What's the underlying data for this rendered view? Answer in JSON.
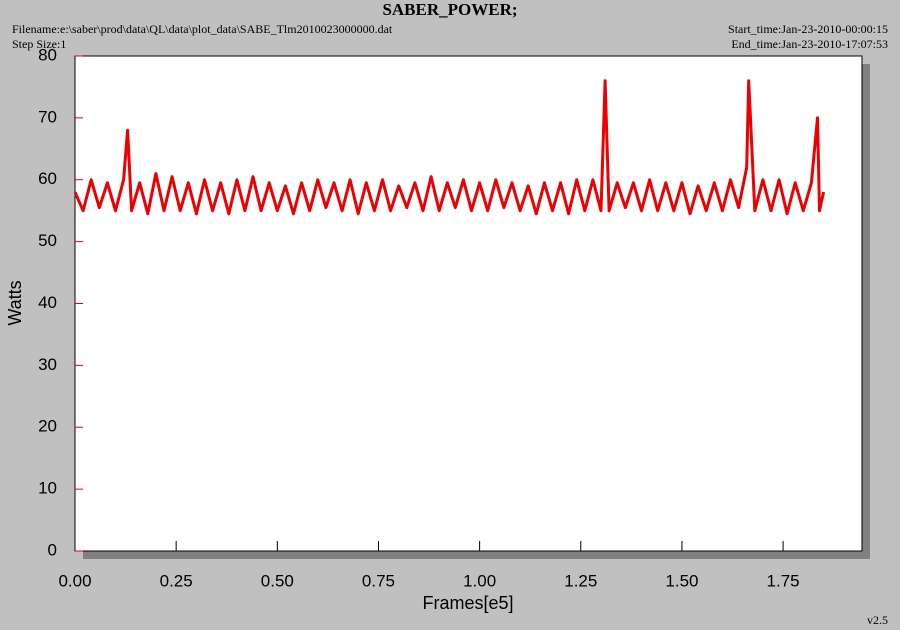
{
  "chart_data": {
    "type": "line",
    "title": "SABER_POWER;",
    "filename": "Filename:e:\\saber\\prod\\data\\QL\\data\\plot_data\\SABE_Tlm2010023000000.dat",
    "step_size": "Step Size:1",
    "start_time": "Start_time:Jan-23-2010-00:00:15",
    "end_time": "End_time:Jan-23-2010-17:07:53",
    "version": "v2.5",
    "x_label": "Frames[e5]",
    "y_label": "Watts",
    "xlim": [
      0,
      1.945
    ],
    "ylim": [
      0,
      80
    ],
    "xticks": [
      {
        "value": 0,
        "label": "0.00"
      },
      {
        "value": 0.25,
        "label": "0.25"
      },
      {
        "value": 0.5,
        "label": "0.50"
      },
      {
        "value": 0.75,
        "label": "0.75"
      },
      {
        "value": 1,
        "label": "1.00"
      },
      {
        "value": 1.25,
        "label": "1.25"
      },
      {
        "value": 1.5,
        "label": "1.50"
      },
      {
        "value": 1.75,
        "label": "1.75"
      }
    ],
    "yticks": [
      0,
      10,
      20,
      30,
      40,
      50,
      60,
      70,
      80
    ],
    "x": [
      0,
      0.02,
      0.04,
      0.06,
      0.08,
      0.1,
      0.12,
      0.13,
      0.14,
      0.16,
      0.18,
      0.2,
      0.22,
      0.24,
      0.26,
      0.28,
      0.3,
      0.32,
      0.34,
      0.36,
      0.38,
      0.4,
      0.42,
      0.44,
      0.46,
      0.48,
      0.5,
      0.52,
      0.54,
      0.56,
      0.58,
      0.6,
      0.62,
      0.64,
      0.66,
      0.68,
      0.7,
      0.72,
      0.74,
      0.76,
      0.78,
      0.8,
      0.82,
      0.84,
      0.86,
      0.88,
      0.9,
      0.92,
      0.94,
      0.96,
      0.98,
      1,
      1.02,
      1.04,
      1.06,
      1.08,
      1.1,
      1.12,
      1.14,
      1.16,
      1.18,
      1.2,
      1.22,
      1.24,
      1.26,
      1.28,
      1.3,
      1.31,
      1.32,
      1.34,
      1.36,
      1.38,
      1.4,
      1.42,
      1.44,
      1.46,
      1.48,
      1.5,
      1.52,
      1.54,
      1.56,
      1.58,
      1.6,
      1.62,
      1.64,
      1.66,
      1.665,
      1.68,
      1.7,
      1.72,
      1.74,
      1.76,
      1.78,
      1.8,
      1.82,
      1.835,
      1.84,
      1.85
    ],
    "series": [
      {
        "color": "#ee0000",
        "values": [
          58,
          55,
          60,
          55.5,
          59.5,
          55,
          60,
          68,
          55,
          59.5,
          54.5,
          61,
          55,
          60.5,
          55,
          59.5,
          54.5,
          60,
          55,
          59.5,
          54.5,
          60,
          55,
          60.5,
          55,
          59.5,
          55,
          59,
          54.5,
          59.5,
          55,
          60,
          55.5,
          59.5,
          55,
          60,
          54.5,
          59.5,
          55,
          60,
          55,
          59,
          55.5,
          59.5,
          55,
          60.5,
          55,
          59.5,
          55.5,
          60,
          55,
          59.5,
          55,
          60,
          55.5,
          59.5,
          55,
          59,
          54.5,
          59.5,
          55,
          59.5,
          54.5,
          60,
          55,
          60,
          55,
          76,
          55,
          59.5,
          55.5,
          59.5,
          55,
          60,
          55,
          59.5,
          55,
          59.5,
          54.5,
          59,
          55,
          59.5,
          55,
          60,
          55.5,
          62,
          76,
          55,
          60,
          55,
          60,
          54.5,
          59.5,
          55,
          59.5,
          70,
          55,
          58
        ]
      }
    ]
  }
}
